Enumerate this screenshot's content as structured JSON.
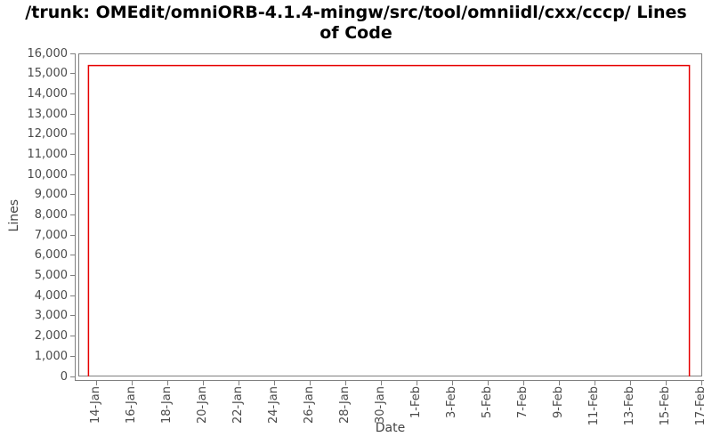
{
  "header": {
    "title_line1": "/trunk: OMEdit/omniORB-4.1.4-mingw/src/tool/omniidl/cxx/cccp/ Lines",
    "title_line2": "of Code"
  },
  "chart_data": {
    "type": "line",
    "title": "/trunk: OMEdit/omniORB-4.1.4-mingw/src/tool/omniidl/cxx/cccp/ Lines of Code",
    "xlabel": "Date",
    "ylabel": "Lines",
    "grid": false,
    "legend": false,
    "line_color": "#e60000",
    "axis_color": "#808080",
    "tick_label_color": "#4a4a4a",
    "ylim": [
      0,
      16000
    ],
    "y_ticks": [
      {
        "value": 0,
        "label": "0"
      },
      {
        "value": 1000,
        "label": "1,000"
      },
      {
        "value": 2000,
        "label": "2,000"
      },
      {
        "value": 3000,
        "label": "3,000"
      },
      {
        "value": 4000,
        "label": "4,000"
      },
      {
        "value": 5000,
        "label": "5,000"
      },
      {
        "value": 6000,
        "label": "6,000"
      },
      {
        "value": 7000,
        "label": "7,000"
      },
      {
        "value": 8000,
        "label": "8,000"
      },
      {
        "value": 9000,
        "label": "9,000"
      },
      {
        "value": 10000,
        "label": "10,000"
      },
      {
        "value": 11000,
        "label": "11,000"
      },
      {
        "value": 12000,
        "label": "12,000"
      },
      {
        "value": 13000,
        "label": "13,000"
      },
      {
        "value": 14000,
        "label": "14,000"
      },
      {
        "value": 15000,
        "label": "15,000"
      },
      {
        "value": 16000,
        "label": "16,000"
      }
    ],
    "x_domain_days": [
      0,
      35.05
    ],
    "x_ticks": [
      {
        "day": 1,
        "label": "14-Jan"
      },
      {
        "day": 3,
        "label": "16-Jan"
      },
      {
        "day": 5,
        "label": "18-Jan"
      },
      {
        "day": 7,
        "label": "20-Jan"
      },
      {
        "day": 9,
        "label": "22-Jan"
      },
      {
        "day": 11,
        "label": "24-Jan"
      },
      {
        "day": 13,
        "label": "26-Jan"
      },
      {
        "day": 15,
        "label": "28-Jan"
      },
      {
        "day": 17,
        "label": "30-Jan"
      },
      {
        "day": 19,
        "label": "1-Feb"
      },
      {
        "day": 21,
        "label": "3-Feb"
      },
      {
        "day": 23,
        "label": "5-Feb"
      },
      {
        "day": 25,
        "label": "7-Feb"
      },
      {
        "day": 27,
        "label": "9-Feb"
      },
      {
        "day": 29,
        "label": "11-Feb"
      },
      {
        "day": 31,
        "label": "13-Feb"
      },
      {
        "day": 33,
        "label": "15-Feb"
      },
      {
        "day": 35,
        "label": "17-Feb"
      }
    ],
    "series": [
      {
        "name": "Lines of Code",
        "color": "#e60000",
        "points": [
          {
            "date": "13-Jan",
            "day": 0.57,
            "value": 0
          },
          {
            "date": "13-Jan",
            "day": 0.57,
            "value": 15400
          },
          {
            "date": "16-Feb",
            "day": 34.33,
            "value": 15400
          },
          {
            "date": "16-Feb",
            "day": 34.33,
            "value": 0
          }
        ]
      }
    ]
  }
}
